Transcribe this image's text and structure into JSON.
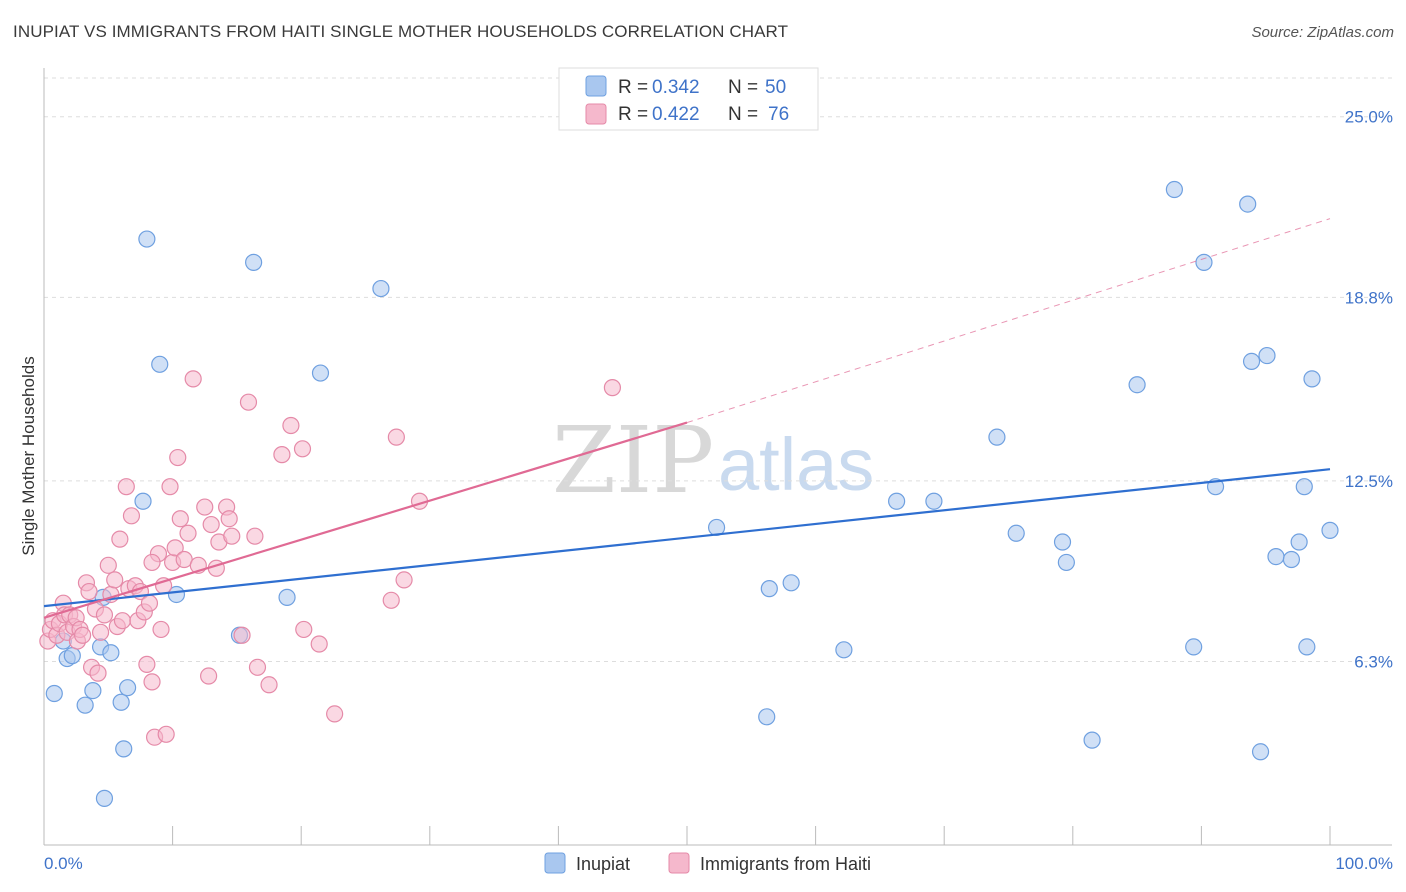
{
  "title": "INUPIAT VS IMMIGRANTS FROM HAITI SINGLE MOTHER HOUSEHOLDS CORRELATION CHART",
  "source": "Source: ZipAtlas.com",
  "watermark": {
    "zip": "ZIP",
    "atlas": "atlas"
  },
  "legend": {
    "rows": [
      {
        "r_label": "R =",
        "r_value": "0.342",
        "n_label": "N =",
        "n_value": "50",
        "color": "#a9c7ef"
      },
      {
        "r_label": "R =",
        "r_value": "0.422",
        "n_label": "N =",
        "n_value": "76",
        "color": "#f5b8cc"
      }
    ]
  },
  "bottom_legend": [
    {
      "label": "Inupiat",
      "color": "#a9c7ef"
    },
    {
      "label": "Immigrants from Haiti",
      "color": "#f5b8cc"
    }
  ],
  "chart_data": {
    "type": "scatter",
    "ylabel": "Single Mother Households",
    "xlim": [
      0,
      100
    ],
    "ylim": [
      0,
      26.5
    ],
    "x_tick_labels": [
      "0.0%",
      "100.0%"
    ],
    "y_ticks": [
      {
        "value": 6.3,
        "label": "6.3%"
      },
      {
        "value": 12.5,
        "label": "12.5%"
      },
      {
        "value": 18.8,
        "label": "18.8%"
      },
      {
        "value": 25.0,
        "label": "25.0%"
      }
    ],
    "grid": "dashed horizontal",
    "series": [
      {
        "name": "Inupiat",
        "color": "#6fa0e0",
        "fill": "#a9c7ef",
        "trend": {
          "x": [
            0,
            100
          ],
          "y": [
            8.2,
            12.9
          ],
          "color": "#2f6fd0"
        },
        "points": [
          [
            0.8,
            5.2
          ],
          [
            1.8,
            6.4
          ],
          [
            2.2,
            6.5
          ],
          [
            3.2,
            4.8
          ],
          [
            3.8,
            5.3
          ],
          [
            4.6,
            8.5
          ],
          [
            4.4,
            6.8
          ],
          [
            5.2,
            6.6
          ],
          [
            6.0,
            4.9
          ],
          [
            6.2,
            3.3
          ],
          [
            6.5,
            5.4
          ],
          [
            7.7,
            11.8
          ],
          [
            8.0,
            20.8
          ],
          [
            9.0,
            16.5
          ],
          [
            10.3,
            8.6
          ],
          [
            15.2,
            7.2
          ],
          [
            16.3,
            20.0
          ],
          [
            18.9,
            8.5
          ],
          [
            21.5,
            16.2
          ],
          [
            26.2,
            19.1
          ],
          [
            4.7,
            1.6
          ],
          [
            52.3,
            10.9
          ],
          [
            56.4,
            8.8
          ],
          [
            58.1,
            9.0
          ],
          [
            56.2,
            4.4
          ],
          [
            62.2,
            6.7
          ],
          [
            66.3,
            11.8
          ],
          [
            69.2,
            11.8
          ],
          [
            74.1,
            14.0
          ],
          [
            75.6,
            10.7
          ],
          [
            79.2,
            10.4
          ],
          [
            79.5,
            9.7
          ],
          [
            81.5,
            3.6
          ],
          [
            85.0,
            15.8
          ],
          [
            87.9,
            22.5
          ],
          [
            89.4,
            6.8
          ],
          [
            90.2,
            20.0
          ],
          [
            91.1,
            12.3
          ],
          [
            93.6,
            22.0
          ],
          [
            93.9,
            16.6
          ],
          [
            94.6,
            3.2
          ],
          [
            95.1,
            16.8
          ],
          [
            95.8,
            9.9
          ],
          [
            97.0,
            9.8
          ],
          [
            97.6,
            10.4
          ],
          [
            98.0,
            12.3
          ],
          [
            98.2,
            6.8
          ],
          [
            98.6,
            16.0
          ],
          [
            100.0,
            10.8
          ],
          [
            1.5,
            7.0
          ]
        ]
      },
      {
        "name": "Immigrants from Haiti",
        "color": "#e58aa8",
        "fill": "#f5b8cc",
        "trend": {
          "x": [
            0,
            50
          ],
          "y": [
            7.8,
            14.5
          ],
          "color": "#e06a94",
          "dashed_extension": {
            "x": [
              50,
              100
            ],
            "y": [
              14.5,
              21.5
            ]
          }
        },
        "points": [
          [
            0.3,
            7.0
          ],
          [
            0.5,
            7.4
          ],
          [
            0.7,
            7.7
          ],
          [
            1.0,
            7.2
          ],
          [
            1.2,
            7.6
          ],
          [
            1.5,
            8.3
          ],
          [
            1.6,
            7.9
          ],
          [
            1.8,
            7.3
          ],
          [
            2.0,
            7.9
          ],
          [
            2.3,
            7.5
          ],
          [
            2.5,
            7.8
          ],
          [
            2.6,
            7.0
          ],
          [
            2.8,
            7.4
          ],
          [
            3.0,
            7.2
          ],
          [
            3.3,
            9.0
          ],
          [
            3.5,
            8.7
          ],
          [
            3.7,
            6.1
          ],
          [
            4.0,
            8.1
          ],
          [
            4.2,
            5.9
          ],
          [
            4.4,
            7.3
          ],
          [
            4.7,
            7.9
          ],
          [
            5.0,
            9.6
          ],
          [
            5.2,
            8.6
          ],
          [
            5.5,
            9.1
          ],
          [
            5.7,
            7.5
          ],
          [
            5.9,
            10.5
          ],
          [
            6.1,
            7.7
          ],
          [
            6.4,
            12.3
          ],
          [
            6.6,
            8.8
          ],
          [
            6.8,
            11.3
          ],
          [
            7.1,
            8.9
          ],
          [
            7.3,
            7.7
          ],
          [
            7.5,
            8.7
          ],
          [
            7.8,
            8.0
          ],
          [
            8.0,
            6.2
          ],
          [
            8.2,
            8.3
          ],
          [
            8.4,
            5.6
          ],
          [
            8.6,
            3.7
          ],
          [
            8.9,
            10.0
          ],
          [
            9.1,
            7.4
          ],
          [
            9.3,
            8.9
          ],
          [
            9.5,
            3.8
          ],
          [
            9.8,
            12.3
          ],
          [
            10.0,
            9.7
          ],
          [
            10.2,
            10.2
          ],
          [
            10.4,
            13.3
          ],
          [
            10.6,
            11.2
          ],
          [
            10.9,
            9.8
          ],
          [
            11.2,
            10.7
          ],
          [
            11.6,
            16.0
          ],
          [
            12.0,
            9.6
          ],
          [
            12.5,
            11.6
          ],
          [
            12.8,
            5.8
          ],
          [
            13.0,
            11.0
          ],
          [
            13.4,
            9.5
          ],
          [
            13.6,
            10.4
          ],
          [
            14.2,
            11.6
          ],
          [
            14.4,
            11.2
          ],
          [
            14.6,
            10.6
          ],
          [
            15.4,
            7.2
          ],
          [
            15.9,
            15.2
          ],
          [
            16.4,
            10.6
          ],
          [
            16.6,
            6.1
          ],
          [
            17.5,
            5.5
          ],
          [
            18.5,
            13.4
          ],
          [
            19.2,
            14.4
          ],
          [
            20.1,
            13.6
          ],
          [
            20.2,
            7.4
          ],
          [
            21.4,
            6.9
          ],
          [
            22.6,
            4.5
          ],
          [
            27.0,
            8.4
          ],
          [
            27.4,
            14.0
          ],
          [
            28.0,
            9.1
          ],
          [
            29.2,
            11.8
          ],
          [
            44.2,
            15.7
          ],
          [
            8.4,
            9.7
          ]
        ]
      }
    ]
  }
}
